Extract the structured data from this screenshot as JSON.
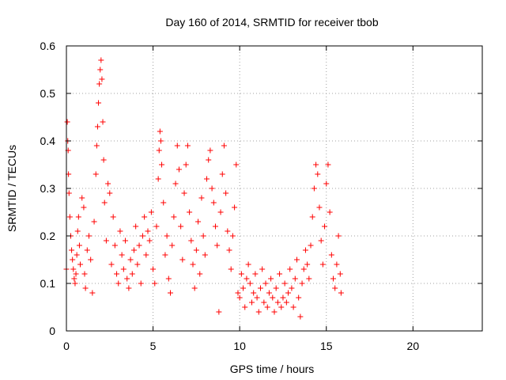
{
  "chart_data": {
    "type": "scatter",
    "title": "Day 160 of 2014, SRMTID for receiver tbob",
    "xlabel": "GPS time / hours",
    "ylabel": "SRMTID / TECUs",
    "xlim": [
      0,
      24
    ],
    "ylim": [
      0,
      0.6
    ],
    "xticks": [
      0,
      5,
      10,
      15,
      20
    ],
    "xtick_labels": [
      "0",
      "5",
      "10",
      "15",
      "20"
    ],
    "yticks": [
      0,
      0.1,
      0.2,
      0.3,
      0.4,
      0.5,
      0.6
    ],
    "ytick_labels": [
      "0",
      "0.1",
      "0.2",
      "0.3",
      "0.4",
      "0.5",
      "0.6"
    ],
    "grid": true,
    "marker": "+",
    "color": "#ff0000",
    "series": [
      {
        "name": "SRMTID",
        "points": [
          [
            0.0,
            0.13
          ],
          [
            0.05,
            0.44
          ],
          [
            0.08,
            0.4
          ],
          [
            0.1,
            0.38
          ],
          [
            0.12,
            0.33
          ],
          [
            0.15,
            0.29
          ],
          [
            0.2,
            0.24
          ],
          [
            0.25,
            0.2
          ],
          [
            0.3,
            0.17
          ],
          [
            0.35,
            0.15
          ],
          [
            0.4,
            0.13
          ],
          [
            0.45,
            0.11
          ],
          [
            0.5,
            0.1
          ],
          [
            0.55,
            0.12
          ],
          [
            0.6,
            0.16
          ],
          [
            0.65,
            0.21
          ],
          [
            0.7,
            0.24
          ],
          [
            0.75,
            0.18
          ],
          [
            0.8,
            0.14
          ],
          [
            0.9,
            0.28
          ],
          [
            1.0,
            0.26
          ],
          [
            1.05,
            0.12
          ],
          [
            1.1,
            0.09
          ],
          [
            1.2,
            0.17
          ],
          [
            1.3,
            0.2
          ],
          [
            1.4,
            0.15
          ],
          [
            1.5,
            0.08
          ],
          [
            1.6,
            0.23
          ],
          [
            1.7,
            0.33
          ],
          [
            1.75,
            0.39
          ],
          [
            1.8,
            0.43
          ],
          [
            1.85,
            0.48
          ],
          [
            1.9,
            0.52
          ],
          [
            1.95,
            0.55
          ],
          [
            2.0,
            0.57
          ],
          [
            2.05,
            0.53
          ],
          [
            2.1,
            0.44
          ],
          [
            2.15,
            0.36
          ],
          [
            2.2,
            0.27
          ],
          [
            2.3,
            0.19
          ],
          [
            2.4,
            0.31
          ],
          [
            2.5,
            0.29
          ],
          [
            2.6,
            0.14
          ],
          [
            2.7,
            0.24
          ],
          [
            2.8,
            0.18
          ],
          [
            2.9,
            0.12
          ],
          [
            3.0,
            0.1
          ],
          [
            3.1,
            0.21
          ],
          [
            3.2,
            0.16
          ],
          [
            3.3,
            0.13
          ],
          [
            3.4,
            0.19
          ],
          [
            3.5,
            0.11
          ],
          [
            3.6,
            0.09
          ],
          [
            3.7,
            0.15
          ],
          [
            3.8,
            0.12
          ],
          [
            3.9,
            0.17
          ],
          [
            4.0,
            0.22
          ],
          [
            4.1,
            0.14
          ],
          [
            4.2,
            0.18
          ],
          [
            4.3,
            0.1
          ],
          [
            4.4,
            0.2
          ],
          [
            4.5,
            0.24
          ],
          [
            4.6,
            0.16
          ],
          [
            4.7,
            0.21
          ],
          [
            4.8,
            0.19
          ],
          [
            4.9,
            0.25
          ],
          [
            5.0,
            0.13
          ],
          [
            5.1,
            0.1
          ],
          [
            5.2,
            0.22
          ],
          [
            5.3,
            0.32
          ],
          [
            5.35,
            0.38
          ],
          [
            5.4,
            0.42
          ],
          [
            5.45,
            0.4
          ],
          [
            5.5,
            0.35
          ],
          [
            5.6,
            0.27
          ],
          [
            5.7,
            0.16
          ],
          [
            5.8,
            0.2
          ],
          [
            5.9,
            0.11
          ],
          [
            6.0,
            0.08
          ],
          [
            6.1,
            0.18
          ],
          [
            6.2,
            0.24
          ],
          [
            6.3,
            0.31
          ],
          [
            6.4,
            0.39
          ],
          [
            6.5,
            0.34
          ],
          [
            6.6,
            0.22
          ],
          [
            6.7,
            0.15
          ],
          [
            6.8,
            0.29
          ],
          [
            6.9,
            0.35
          ],
          [
            7.0,
            0.39
          ],
          [
            7.1,
            0.25
          ],
          [
            7.2,
            0.19
          ],
          [
            7.3,
            0.14
          ],
          [
            7.4,
            0.09
          ],
          [
            7.5,
            0.17
          ],
          [
            7.6,
            0.23
          ],
          [
            7.7,
            0.12
          ],
          [
            7.8,
            0.28
          ],
          [
            7.9,
            0.2
          ],
          [
            8.0,
            0.16
          ],
          [
            8.1,
            0.32
          ],
          [
            8.2,
            0.36
          ],
          [
            8.3,
            0.38
          ],
          [
            8.4,
            0.3
          ],
          [
            8.5,
            0.27
          ],
          [
            8.6,
            0.22
          ],
          [
            8.7,
            0.18
          ],
          [
            8.8,
            0.04
          ],
          [
            8.9,
            0.25
          ],
          [
            9.0,
            0.33
          ],
          [
            9.1,
            0.39
          ],
          [
            9.2,
            0.29
          ],
          [
            9.3,
            0.21
          ],
          [
            9.4,
            0.17
          ],
          [
            9.5,
            0.13
          ],
          [
            9.6,
            0.2
          ],
          [
            9.7,
            0.26
          ],
          [
            9.8,
            0.35
          ],
          [
            9.9,
            0.08
          ],
          [
            10.0,
            0.07
          ],
          [
            10.1,
            0.12
          ],
          [
            10.2,
            0.09
          ],
          [
            10.3,
            0.05
          ],
          [
            10.4,
            0.11
          ],
          [
            10.5,
            0.14
          ],
          [
            10.6,
            0.1
          ],
          [
            10.7,
            0.06
          ],
          [
            10.8,
            0.08
          ],
          [
            10.9,
            0.12
          ],
          [
            11.0,
            0.07
          ],
          [
            11.1,
            0.04
          ],
          [
            11.2,
            0.09
          ],
          [
            11.3,
            0.13
          ],
          [
            11.4,
            0.06
          ],
          [
            11.5,
            0.1
          ],
          [
            11.6,
            0.05
          ],
          [
            11.7,
            0.08
          ],
          [
            11.8,
            0.11
          ],
          [
            11.9,
            0.07
          ],
          [
            12.0,
            0.04
          ],
          [
            12.1,
            0.09
          ],
          [
            12.2,
            0.06
          ],
          [
            12.3,
            0.12
          ],
          [
            12.4,
            0.05
          ],
          [
            12.5,
            0.07
          ],
          [
            12.6,
            0.1
          ],
          [
            12.7,
            0.06
          ],
          [
            12.8,
            0.08
          ],
          [
            12.9,
            0.13
          ],
          [
            13.0,
            0.09
          ],
          [
            13.1,
            0.05
          ],
          [
            13.2,
            0.11
          ],
          [
            13.3,
            0.15
          ],
          [
            13.4,
            0.07
          ],
          [
            13.5,
            0.03
          ],
          [
            13.6,
            0.1
          ],
          [
            13.7,
            0.13
          ],
          [
            13.8,
            0.17
          ],
          [
            13.9,
            0.14
          ],
          [
            14.0,
            0.11
          ],
          [
            14.1,
            0.18
          ],
          [
            14.2,
            0.24
          ],
          [
            14.3,
            0.3
          ],
          [
            14.4,
            0.35
          ],
          [
            14.5,
            0.33
          ],
          [
            14.6,
            0.26
          ],
          [
            14.7,
            0.19
          ],
          [
            14.8,
            0.14
          ],
          [
            14.9,
            0.22
          ],
          [
            15.0,
            0.31
          ],
          [
            15.1,
            0.35
          ],
          [
            15.2,
            0.25
          ],
          [
            15.3,
            0.16
          ],
          [
            15.4,
            0.11
          ],
          [
            15.5,
            0.09
          ],
          [
            15.6,
            0.14
          ],
          [
            15.7,
            0.2
          ],
          [
            15.8,
            0.12
          ],
          [
            15.85,
            0.08
          ]
        ]
      }
    ]
  }
}
